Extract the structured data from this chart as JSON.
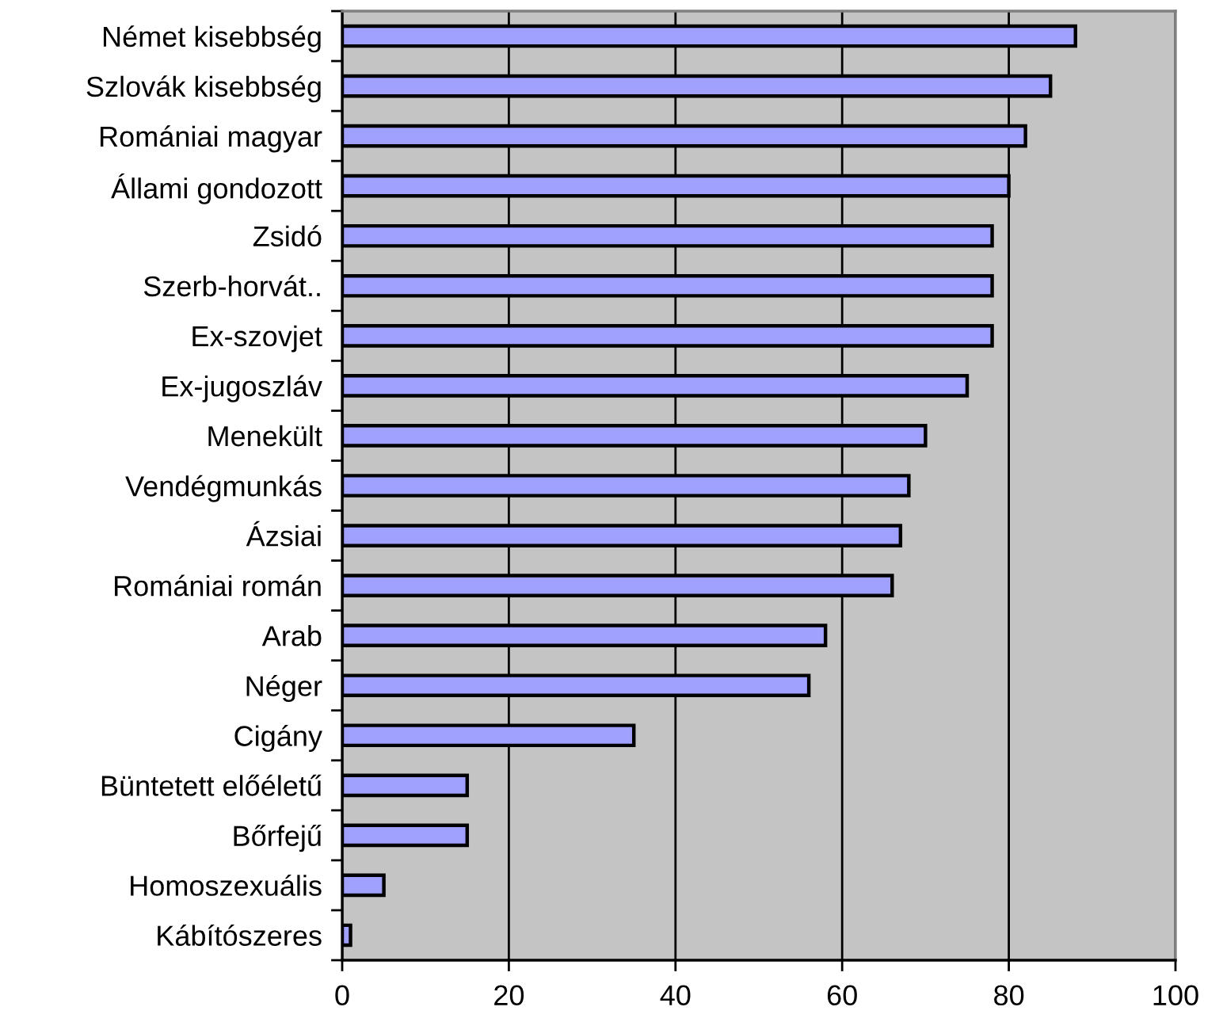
{
  "chart_data": {
    "type": "bar",
    "orientation": "horizontal",
    "categories": [
      "Német kisebbség",
      "Szlovák kisebbség",
      "Romániai magyar",
      "Állami gondozott",
      "Zsidó",
      "Szerb-horvát..",
      "Ex-szovjet",
      "Ex-jugoszláv",
      "Menekült",
      "Vendégmunkás",
      "Ázsiai",
      "Romániai román",
      "Arab",
      "Néger",
      "Cigány",
      "Büntetett előéletű",
      "Bőrfejű",
      "Homoszexuális",
      "Kábítószeres"
    ],
    "values": [
      88,
      85,
      82,
      80,
      78,
      78,
      78,
      75,
      70,
      68,
      67,
      66,
      58,
      56,
      35,
      15,
      15,
      5,
      1
    ],
    "color": "#a0a0ff",
    "xlim": [
      0,
      100
    ],
    "xticks": [
      0,
      20,
      40,
      60,
      80,
      100
    ],
    "grid": "x"
  }
}
